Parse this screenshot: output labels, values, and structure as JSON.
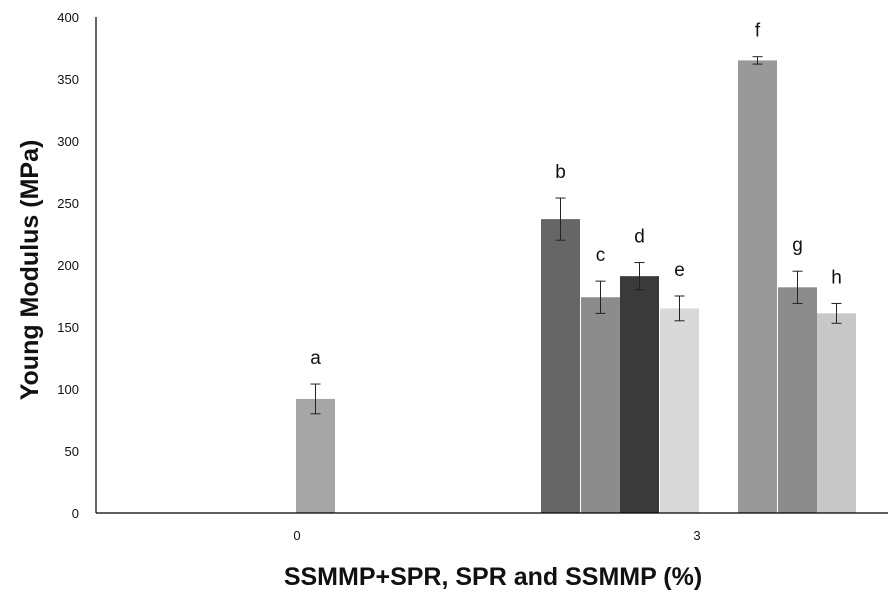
{
  "chart_data": {
    "type": "bar",
    "title": "",
    "xlabel": "SSMMP+SPR, SPR and SSMMP (%)",
    "ylabel": "Young Modulus (MPa)",
    "ylim": [
      0,
      400
    ],
    "yticks": [
      0,
      50,
      100,
      150,
      200,
      250,
      300,
      350,
      400
    ],
    "categories": [
      "0",
      "3"
    ],
    "grid": false,
    "bars": [
      {
        "category": "0",
        "label": "a",
        "value": 92,
        "error": 12,
        "color": "#a6a6a6"
      },
      {
        "category": "3",
        "label": "b",
        "value": 237,
        "error": 17,
        "color": "#666666"
      },
      {
        "category": "3",
        "label": "c",
        "value": 174,
        "error": 13,
        "color": "#8c8c8c"
      },
      {
        "category": "3",
        "label": "d",
        "value": 191,
        "error": 11,
        "color": "#3a3a3a"
      },
      {
        "category": "3",
        "label": "e",
        "value": 165,
        "error": 10,
        "color": "#d9d9d9"
      },
      {
        "category": "3",
        "label": "f",
        "value": 365,
        "error": 3,
        "color": "#999999"
      },
      {
        "category": "3",
        "label": "g",
        "value": 182,
        "error": 13,
        "color": "#8c8c8c"
      },
      {
        "category": "3",
        "label": "h",
        "value": 161,
        "error": 8,
        "color": "#c8c8c8"
      }
    ]
  }
}
